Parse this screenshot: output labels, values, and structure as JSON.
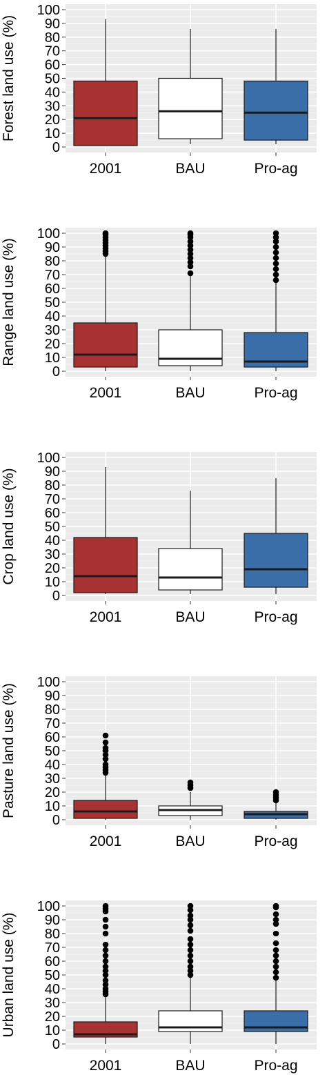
{
  "chart_data": [
    {
      "type": "box",
      "ylabel": "Forest land use (%)",
      "categories": [
        "2001",
        "BAU",
        "Pro-ag"
      ],
      "ylim": [
        0,
        100
      ],
      "yticks": [
        0,
        10,
        20,
        30,
        40,
        50,
        60,
        70,
        80,
        90,
        100
      ],
      "boxes": [
        {
          "min": 1,
          "q1": 1,
          "median": 21,
          "q3": 48,
          "max": 93,
          "outliers": []
        },
        {
          "min": 2,
          "q1": 6,
          "median": 26,
          "q3": 50,
          "max": 86,
          "outliers": []
        },
        {
          "min": 2,
          "q1": 5,
          "median": 25,
          "q3": 48,
          "max": 86,
          "outliers": []
        }
      ]
    },
    {
      "type": "box",
      "ylabel": "Range land use (%)",
      "categories": [
        "2001",
        "BAU",
        "Pro-ag"
      ],
      "ylim": [
        0,
        100
      ],
      "yticks": [
        0,
        10,
        20,
        30,
        40,
        50,
        60,
        70,
        80,
        90,
        100
      ],
      "boxes": [
        {
          "min": 0,
          "q1": 3,
          "median": 12,
          "q3": 35,
          "max": 84,
          "outliers": [
            85,
            87,
            89,
            91,
            93,
            95,
            97,
            99,
            100
          ]
        },
        {
          "min": 0,
          "q1": 4,
          "median": 9,
          "q3": 30,
          "max": 71,
          "outliers": [
            71,
            76,
            79,
            82,
            85,
            88,
            91,
            94,
            97,
            99,
            100
          ]
        },
        {
          "min": 0,
          "q1": 3,
          "median": 7,
          "q3": 28,
          "max": 66,
          "outliers": [
            66,
            70,
            74,
            78,
            82,
            86,
            90,
            94,
            97,
            100
          ]
        }
      ]
    },
    {
      "type": "box",
      "ylabel": "Crop land use (%)",
      "categories": [
        "2001",
        "BAU",
        "Pro-ag"
      ],
      "ylim": [
        0,
        100
      ],
      "yticks": [
        0,
        10,
        20,
        30,
        40,
        50,
        60,
        70,
        80,
        90,
        100
      ],
      "boxes": [
        {
          "min": 1,
          "q1": 2,
          "median": 14,
          "q3": 42,
          "max": 93,
          "outliers": []
        },
        {
          "min": 1,
          "q1": 4,
          "median": 13,
          "q3": 34,
          "max": 76,
          "outliers": []
        },
        {
          "min": 1,
          "q1": 6,
          "median": 19,
          "q3": 45,
          "max": 85,
          "outliers": []
        }
      ]
    },
    {
      "type": "box",
      "ylabel": "Pasture land use (%)",
      "categories": [
        "2001",
        "BAU",
        "Pro-ag"
      ],
      "ylim": [
        0,
        100
      ],
      "yticks": [
        0,
        10,
        20,
        30,
        40,
        50,
        60,
        70,
        80,
        90,
        100
      ],
      "boxes": [
        {
          "min": 0,
          "q1": 1,
          "median": 6,
          "q3": 14,
          "max": 33,
          "outliers": [
            34,
            36,
            38,
            40,
            44,
            47,
            50,
            52,
            56,
            61
          ]
        },
        {
          "min": 0,
          "q1": 3,
          "median": 7,
          "q3": 10,
          "max": 20,
          "outliers": [
            23,
            25,
            27
          ]
        },
        {
          "min": 0,
          "q1": 1,
          "median": 4,
          "q3": 6,
          "max": 13,
          "outliers": [
            14,
            16,
            18,
            20
          ]
        }
      ]
    },
    {
      "type": "box",
      "ylabel": "Urban land use (%)",
      "categories": [
        "2001",
        "BAU",
        "Pro-ag"
      ],
      "ylim": [
        0,
        100
      ],
      "yticks": [
        0,
        10,
        20,
        30,
        40,
        50,
        60,
        70,
        80,
        90,
        100
      ],
      "boxes": [
        {
          "min": 0,
          "q1": 5,
          "median": 7,
          "q3": 16,
          "max": 35,
          "outliers": [
            36,
            38,
            40,
            43,
            46,
            50,
            53,
            56,
            60,
            64,
            68,
            72,
            80,
            85,
            90,
            96,
            98,
            100
          ]
        },
        {
          "min": 0,
          "q1": 9,
          "median": 12,
          "q3": 24,
          "max": 49,
          "outliers": [
            50,
            53,
            56,
            60,
            64,
            68,
            72,
            76,
            82,
            86,
            90,
            93,
            97,
            100
          ]
        },
        {
          "min": 0,
          "q1": 9,
          "median": 12,
          "q3": 24,
          "max": 47,
          "outliers": [
            48,
            52,
            56,
            60,
            64,
            68,
            73,
            80,
            87,
            90,
            94,
            99,
            100
          ]
        }
      ]
    }
  ],
  "colors": {
    "panel_bg": "#ebebeb",
    "grid": "#ffffff",
    "box_2001": "#a83232",
    "box_BAU": "#ffffff",
    "box_Pro-ag": "#3a6ea8",
    "outline": "#1a1a1a"
  }
}
